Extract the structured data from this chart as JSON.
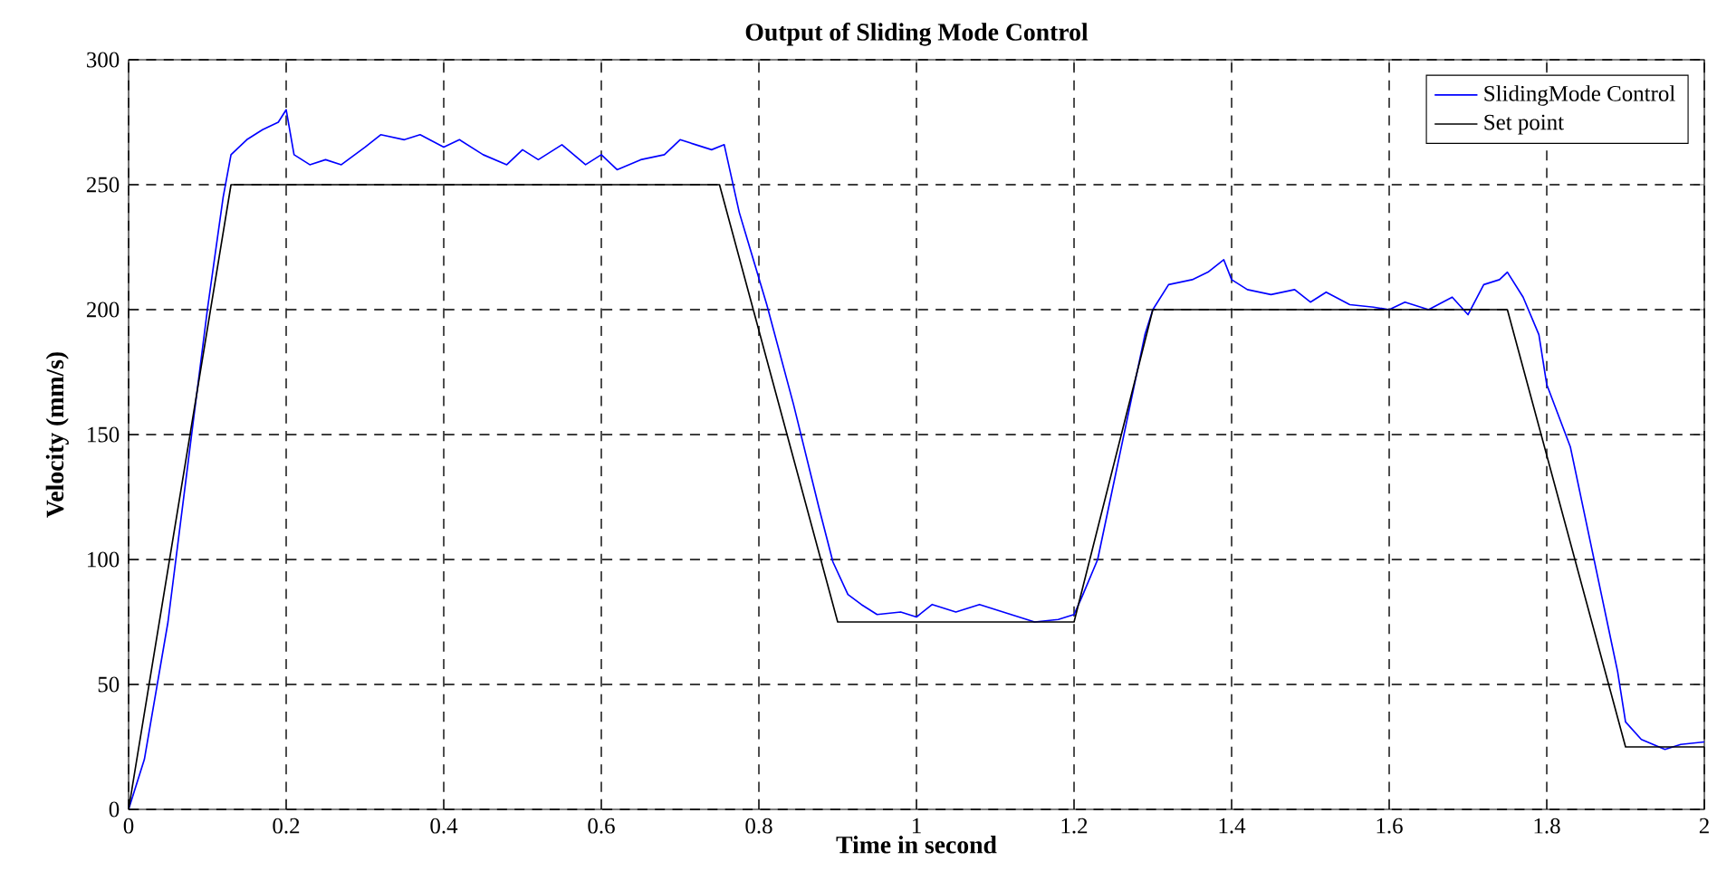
{
  "chart_data": {
    "type": "line",
    "title": "Output of Sliding Mode Control",
    "xlabel": "Time in second",
    "ylabel": "Velocity (mm/s)",
    "xlim": [
      0,
      2
    ],
    "ylim": [
      0,
      300
    ],
    "xticks": [
      0,
      0.2,
      0.4,
      0.6,
      0.8,
      1,
      1.2,
      1.4,
      1.6,
      1.8,
      2
    ],
    "yticks": [
      0,
      50,
      100,
      150,
      200,
      250,
      300
    ],
    "grid": true,
    "legend": "top right",
    "line_style": "solid",
    "series": [
      {
        "name": "SlidingMode Control",
        "color": "#0000ff",
        "x": [
          0,
          0.02,
          0.05,
          0.08,
          0.1,
          0.12,
          0.13,
          0.15,
          0.17,
          0.19,
          0.2,
          0.21,
          0.23,
          0.25,
          0.27,
          0.3,
          0.32,
          0.35,
          0.37,
          0.4,
          0.42,
          0.45,
          0.48,
          0.5,
          0.52,
          0.55,
          0.58,
          0.6,
          0.62,
          0.65,
          0.68,
          0.7,
          0.72,
          0.74,
          0.756,
          0.775,
          0.81,
          0.844,
          0.876,
          0.894,
          0.913,
          0.93,
          0.95,
          0.98,
          1.0,
          1.02,
          1.05,
          1.08,
          1.1,
          1.12,
          1.15,
          1.18,
          1.2,
          1.21,
          1.23,
          1.25,
          1.27,
          1.29,
          1.3,
          1.32,
          1.35,
          1.37,
          1.39,
          1.4,
          1.42,
          1.45,
          1.48,
          1.5,
          1.52,
          1.55,
          1.58,
          1.6,
          1.62,
          1.65,
          1.68,
          1.7,
          1.72,
          1.74,
          1.75,
          1.77,
          1.79,
          1.8,
          1.83,
          1.85,
          1.87,
          1.89,
          1.9,
          1.92,
          1.95,
          1.97,
          2.0
        ],
        "values": [
          0,
          20,
          75,
          150,
          200,
          245,
          262,
          268,
          272,
          275,
          280,
          262,
          258,
          260,
          258,
          265,
          270,
          268,
          270,
          265,
          268,
          262,
          258,
          264,
          260,
          266,
          258,
          262,
          256,
          260,
          262,
          268,
          266,
          264,
          266,
          239,
          202,
          162,
          121,
          99,
          86,
          82,
          78,
          79,
          77,
          82,
          79,
          82,
          80,
          78,
          75,
          76,
          78,
          85,
          100,
          130,
          160,
          190,
          200,
          210,
          212,
          215,
          220,
          212,
          208,
          206,
          208,
          203,
          207,
          202,
          201,
          200,
          203,
          200,
          205,
          198,
          210,
          212,
          215,
          205,
          190,
          170,
          145,
          115,
          85,
          55,
          35,
          28,
          24,
          26,
          27
        ]
      },
      {
        "name": "Set point",
        "color": "#000000",
        "x": [
          0,
          0.13,
          0.75,
          0.9,
          1.2,
          1.3,
          1.75,
          1.9,
          2
        ],
        "values": [
          0,
          250,
          250,
          75,
          75,
          200,
          200,
          25,
          25
        ]
      }
    ]
  }
}
